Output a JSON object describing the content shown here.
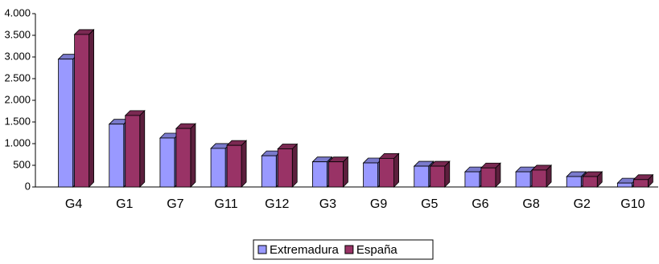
{
  "chart_data": {
    "type": "bar",
    "categories": [
      "G4",
      "G1",
      "G7",
      "G11",
      "G12",
      "G3",
      "G9",
      "G5",
      "G6",
      "G8",
      "G2",
      "G10"
    ],
    "series": [
      {
        "name": "Extremadura",
        "color": "#9999ff",
        "values": [
          2950,
          1450,
          1130,
          890,
          720,
          580,
          555,
          480,
          350,
          350,
          240,
          90
        ]
      },
      {
        "name": "España",
        "color": "#993366",
        "values": [
          3520,
          1650,
          1350,
          960,
          880,
          580,
          660,
          480,
          440,
          390,
          240,
          170
        ]
      }
    ],
    "ylim": [
      0,
      4000
    ],
    "yticks": [
      0,
      500,
      {
        "value": 1000,
        "label": "1.000"
      },
      {
        "value": 1500,
        "label": "1.500"
      },
      {
        "value": 2000,
        "label": "2.000"
      },
      {
        "value": 2500,
        "label": "2.500"
      },
      {
        "value": 3000,
        "label": "3.000"
      },
      {
        "value": 3500,
        "label": "3.500"
      },
      {
        "value": 4000,
        "label": "4.000"
      }
    ],
    "legend": "bottom"
  }
}
